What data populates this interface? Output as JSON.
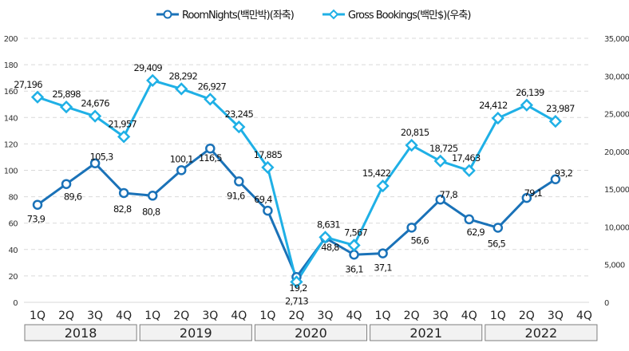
{
  "chart_data": {
    "type": "line",
    "title": "",
    "legend_position": "top-center",
    "legend": [
      "RoomNights(백만박)(좌축)",
      "Gross Bookings(백만$)(우축)"
    ],
    "categories": [
      "1Q",
      "2Q",
      "3Q",
      "4Q",
      "1Q",
      "2Q",
      "3Q",
      "4Q",
      "1Q",
      "2Q",
      "3Q",
      "4Q",
      "1Q",
      "2Q",
      "3Q",
      "4Q",
      "1Q",
      "2Q",
      "3Q",
      "4Q"
    ],
    "year_groups": [
      "2018",
      "2019",
      "2020",
      "2021",
      "2022"
    ],
    "y_left": {
      "ticks": [
        "0",
        "20",
        "40",
        "60",
        "80",
        "100",
        "120",
        "140",
        "160",
        "180",
        "200"
      ],
      "ylim": [
        0,
        200
      ]
    },
    "y_right": {
      "ticks": [
        "0",
        "5,000",
        "10,000",
        "15,000",
        "20,000",
        "25,000",
        "30,000",
        "35,000"
      ],
      "ylim": [
        0,
        35000
      ]
    },
    "grid": true,
    "series": [
      {
        "name": "RoomNights(백만박)(좌축)",
        "axis": "left",
        "color": "#1a72b8",
        "marker": "circle",
        "values": [
          73.9,
          89.6,
          105.3,
          82.8,
          80.8,
          100.1,
          116.5,
          91.6,
          69.4,
          19.2,
          48.8,
          36.1,
          37.1,
          56.6,
          77.8,
          62.9,
          56.5,
          79.1,
          93.2,
          null
        ],
        "labels": [
          "73,9",
          "89,6",
          "105,3",
          "82,8",
          "80,8",
          "100,1",
          "116,5",
          "91,6",
          "69,4",
          "19,2",
          "48,8",
          "36,1",
          "37,1",
          "56,6",
          "77,8",
          "62,9",
          "56,5",
          "79,1",
          "93,2",
          ""
        ]
      },
      {
        "name": "Gross Bookings(백만$)(우축)",
        "axis": "right",
        "color": "#1fb0e6",
        "marker": "diamond",
        "values": [
          27196,
          25898,
          24676,
          21957,
          29409,
          28292,
          26927,
          23245,
          17885,
          2713,
          8631,
          7567,
          15422,
          20815,
          18725,
          17463,
          24412,
          26139,
          23987,
          null
        ],
        "labels": [
          "27,196",
          "25,898",
          "24,676",
          "21,957",
          "29,409",
          "28,292",
          "26,927",
          "23,245",
          "17,885",
          "2,713",
          "8,631",
          "7,567",
          "15,422",
          "20,815",
          "18,725",
          "17,463",
          "24,412",
          "26,139",
          "23,987",
          ""
        ]
      }
    ]
  }
}
